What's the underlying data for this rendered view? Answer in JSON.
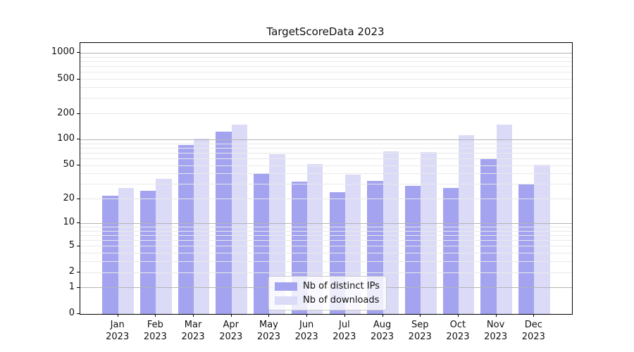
{
  "chart_data": {
    "type": "bar",
    "title": "TargetScoreData 2023",
    "categories": [
      "Jan 2023",
      "Feb 2023",
      "Mar 2023",
      "Apr 2023",
      "May 2023",
      "Jun 2023",
      "Jul 2023",
      "Aug 2023",
      "Sep 2023",
      "Oct 2023",
      "Nov 2023",
      "Dec 2023"
    ],
    "series": [
      {
        "name": "Nb of distinct IPs",
        "color": "#a3a3f0",
        "values": [
          22,
          25,
          86,
          123,
          41,
          32,
          24,
          33,
          29,
          27,
          60,
          30
        ]
      },
      {
        "name": "Nb of downloads",
        "color": "#dbdbf8",
        "values": [
          27,
          35,
          102,
          150,
          68,
          52,
          39,
          73,
          72,
          113,
          150,
          51
        ]
      }
    ],
    "yscale": "log1p",
    "ylim": [
      0,
      1300
    ],
    "yticks": [
      1000,
      500,
      200,
      100,
      50,
      20,
      10,
      5,
      2,
      1,
      0
    ],
    "grid": "on",
    "legend_position": "lower-center"
  },
  "colors": {
    "grid_major": "#b4b4b4",
    "grid_minor": "#e9e9e9",
    "axis": "#000000",
    "text": "#111111",
    "legend_border": "#cccccc"
  }
}
